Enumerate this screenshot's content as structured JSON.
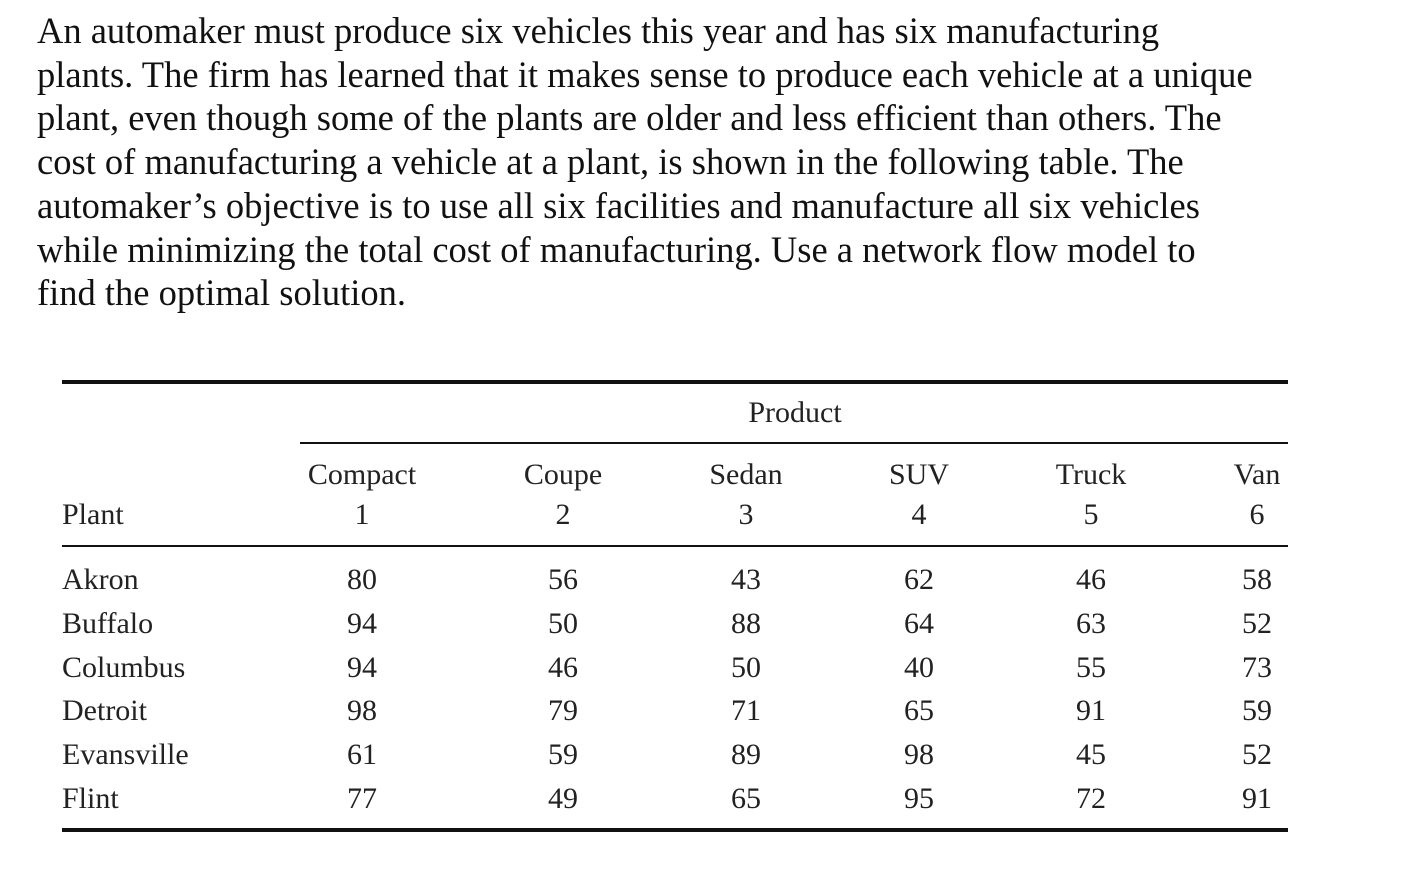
{
  "problem": {
    "lines": [
      "An automaker must produce six vehicles this year and has six manufacturing",
      "plants. The firm has learned that it makes sense to produce each vehicle at a unique",
      "plant, even though some of the plants are older and less efficient than others. The",
      "cost of manufacturing a vehicle at a plant, is shown in the following table. The",
      "automaker’s objective is to use all six facilities and manufacture all six vehicles",
      "while minimizing the total cost of manufacturing. Use a network flow model to",
      "find the optimal solution."
    ]
  },
  "table": {
    "group_header": "Product",
    "row_header": "Plant",
    "columns": [
      {
        "name": "Compact",
        "number": "1"
      },
      {
        "name": "Coupe",
        "number": "2"
      },
      {
        "name": "Sedan",
        "number": "3"
      },
      {
        "name": "SUV",
        "number": "4"
      },
      {
        "name": "Truck",
        "number": "5"
      },
      {
        "name": "Van",
        "number": "6"
      }
    ],
    "rows": [
      {
        "plant": "Akron",
        "costs": [
          "80",
          "56",
          "43",
          "62",
          "46",
          "58"
        ]
      },
      {
        "plant": "Buffalo",
        "costs": [
          "94",
          "50",
          "88",
          "64",
          "63",
          "52"
        ]
      },
      {
        "plant": "Columbus",
        "costs": [
          "94",
          "46",
          "50",
          "40",
          "55",
          "73"
        ]
      },
      {
        "plant": "Detroit",
        "costs": [
          "98",
          "79",
          "71",
          "65",
          "91",
          "59"
        ]
      },
      {
        "plant": "Evansville",
        "costs": [
          "61",
          "59",
          "89",
          "98",
          "45",
          "52"
        ]
      },
      {
        "plant": "Flint",
        "costs": [
          "77",
          "49",
          "65",
          "95",
          "72",
          "91"
        ]
      }
    ]
  }
}
